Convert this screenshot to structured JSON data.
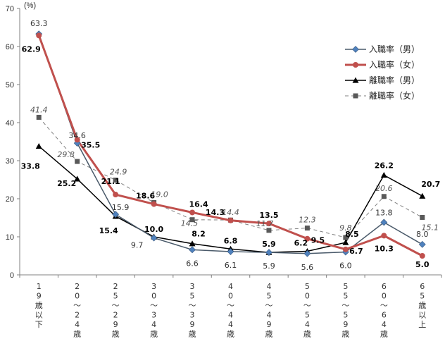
{
  "chart_data": {
    "type": "line",
    "unit_label": "(%)",
    "ylim": [
      0,
      70
    ],
    "yticks": [
      0,
      10,
      20,
      30,
      40,
      50,
      60,
      70
    ],
    "grid": false,
    "legend_position": "top-right",
    "categories": [
      "19歳以下",
      "20~24歳",
      "25~29歳",
      "30~34歳",
      "35~39歳",
      "40~44歳",
      "45~49歳",
      "50~54歳",
      "55~59歳",
      "60~64歳",
      "65歳以上"
    ],
    "category_lines": [
      [
        "1",
        "9",
        "歳",
        "以",
        "下"
      ],
      [
        "2",
        "0",
        "～",
        "2",
        "4",
        "歳"
      ],
      [
        "2",
        "5",
        "～",
        "2",
        "9",
        "歳"
      ],
      [
        "3",
        "0",
        "～",
        "3",
        "4",
        "歳"
      ],
      [
        "3",
        "5",
        "～",
        "3",
        "9",
        "歳"
      ],
      [
        "4",
        "0",
        "～",
        "4",
        "4",
        "歳"
      ],
      [
        "4",
        "5",
        "～",
        "4",
        "9",
        "歳"
      ],
      [
        "5",
        "0",
        "～",
        "5",
        "4",
        "歳"
      ],
      [
        "5",
        "5",
        "～",
        "5",
        "9",
        "歳"
      ],
      [
        "6",
        "0",
        "～",
        "6",
        "4",
        "歳"
      ],
      [
        "6",
        "5",
        "歳",
        "以",
        "上"
      ]
    ],
    "series": [
      {
        "name": "入職率（男）",
        "color": "#4a5a6a",
        "marker": "diamond-icon",
        "marker_color": "#4f81bd",
        "values": [
          63.3,
          34.6,
          15.9,
          9.7,
          6.6,
          6.1,
          5.9,
          5.6,
          6.0,
          13.8,
          8.0
        ]
      },
      {
        "name": "入職率（女）",
        "color": "#c0504d",
        "marker": "circle-icon",
        "marker_color": "#c0504d",
        "values": [
          62.9,
          35.5,
          21.1,
          18.6,
          16.4,
          14.3,
          13.5,
          9.5,
          6.7,
          10.3,
          5.0
        ]
      },
      {
        "name": "離職率（男）",
        "color": "#000000",
        "marker": "triangle-icon",
        "marker_color": "#000000",
        "values": [
          33.8,
          25.2,
          15.4,
          10.0,
          8.2,
          6.8,
          5.9,
          6.2,
          8.5,
          26.2,
          20.7
        ]
      },
      {
        "name": "離職率（女）",
        "color": "#808080",
        "marker": "square-icon",
        "marker_color": "#595959",
        "values": [
          41.4,
          29.8,
          24.9,
          19.0,
          14.5,
          14.4,
          11.7,
          12.3,
          9.8,
          20.6,
          15.1
        ]
      }
    ],
    "data_labels": [
      [
        "63.3",
        "34.6",
        "15.9",
        "9.7",
        "6.6",
        "6.1",
        "5.9",
        "5.6",
        "6.0",
        "13.8",
        "8.0"
      ],
      [
        "62.9",
        "35.5",
        "21.1",
        "18.6",
        "16.4",
        "14.3",
        "13.5",
        "9.5",
        "6.7",
        "10.3",
        "5.0"
      ],
      [
        "33.8",
        "25.2",
        "15.4",
        "10.0",
        "8.2",
        "6.8",
        "5.9",
        "6.2",
        "8.5",
        "26.2",
        "20.7"
      ],
      [
        "41.4",
        "29.8",
        "24.9",
        "19.0",
        "14.5",
        "14.4",
        "11.7",
        "12.3",
        "9.8",
        "20.6",
        "15.1"
      ]
    ]
  }
}
